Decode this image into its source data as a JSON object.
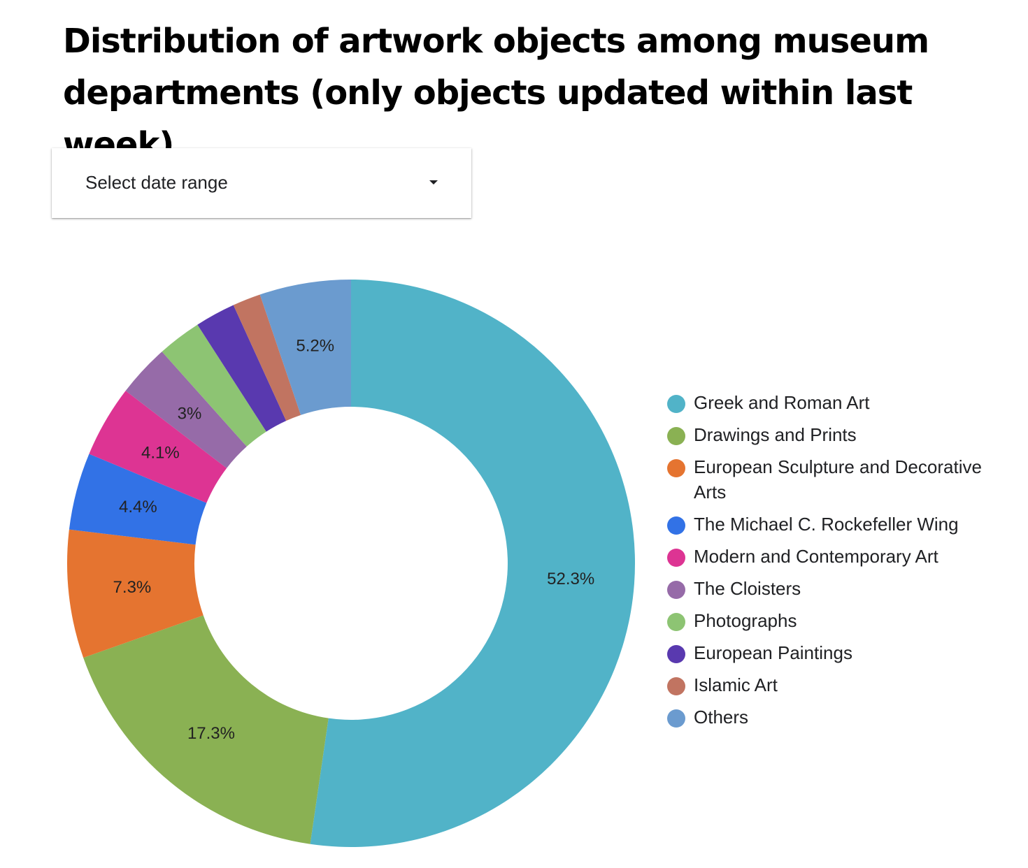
{
  "header": {
    "title": "Distribution of artwork objects among museum departments (only objects updated within last week)"
  },
  "controls": {
    "date_range_label": "Select date range",
    "date_range_icon": "caret-down-icon"
  },
  "chart_data": {
    "type": "pie",
    "donut": true,
    "title": "Distribution of artwork objects among museum departments (only objects updated within last week)",
    "legend_position": "right",
    "slices": [
      {
        "label": "Greek and Roman Art",
        "value": 52.3,
        "display": "52.3%",
        "color": "#51B3C8"
      },
      {
        "label": "Drawings and Prints",
        "value": 17.3,
        "display": "17.3%",
        "color": "#8AB153"
      },
      {
        "label": "European Sculpture and Decorative Arts",
        "value": 7.3,
        "display": "7.3%",
        "color": "#E57430"
      },
      {
        "label": "The Michael C. Rockefeller Wing",
        "value": 4.4,
        "display": "4.4%",
        "color": "#3272E6"
      },
      {
        "label": "Modern and Contemporary Art",
        "value": 4.1,
        "display": "4.1%",
        "color": "#DD3493"
      },
      {
        "label": "The Cloisters",
        "value": 3.0,
        "display": "3%",
        "color": "#966BA8"
      },
      {
        "label": "Photographs",
        "value": 2.5,
        "display": "",
        "color": "#8DC473"
      },
      {
        "label": "European Paintings",
        "value": 2.3,
        "display": "",
        "color": "#5939AF"
      },
      {
        "label": "Islamic Art",
        "value": 1.6,
        "display": "",
        "color": "#C17461"
      },
      {
        "label": "Others",
        "value": 5.2,
        "display": "5.2%",
        "color": "#6B9BCF"
      }
    ]
  }
}
